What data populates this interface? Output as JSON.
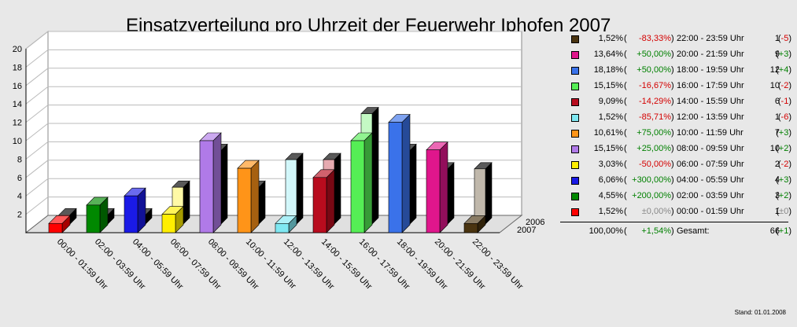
{
  "chart_data": {
    "type": "bar",
    "title": "Einsatzverteilung pro Uhrzeit der Feuerwehr Iphofen 2007",
    "ylim": [
      0,
      20
    ],
    "yticks": [
      2,
      4,
      6,
      8,
      10,
      12,
      14,
      16,
      18,
      20
    ],
    "categories": [
      "00:00 - 01:59 Uhr",
      "02:00 - 03:59 Uhr",
      "04:00 - 05:59 Uhr",
      "06:00 - 07:59 Uhr",
      "08:00 - 09:59 Uhr",
      "10:00 - 11:59 Uhr",
      "12:00 - 13:59 Uhr",
      "14:00 - 15:59 Uhr",
      "16:00 - 17:59 Uhr",
      "18:00 - 19:59 Uhr",
      "20:00 - 21:59 Uhr",
      "22:00 - 23:59 Uhr"
    ],
    "colors": [
      "#ff0000",
      "#008800",
      "#1a1ae6",
      "#ffee00",
      "#b07ae8",
      "#ff9418",
      "#7fe8f2",
      "#b80c1e",
      "#55ee55",
      "#3a72ea",
      "#e0168c",
      "#4a3410"
    ],
    "series": [
      {
        "name": "2007",
        "values": [
          1,
          3,
          4,
          2,
          10,
          7,
          1,
          6,
          10,
          12,
          9,
          1
        ]
      },
      {
        "name": "2006",
        "values": [
          1,
          1,
          1,
          4,
          8,
          4,
          7,
          7,
          12,
          8,
          6,
          6
        ]
      }
    ],
    "grid": true,
    "legend_position": "right"
  },
  "legend": {
    "rows": [
      {
        "color": "#4a3410",
        "pct": "1,52%",
        "open": "(",
        "change": "-83,33%",
        "close": ")",
        "time": "22:00 - 23:59 Uhr",
        "count": "1",
        "pre": "(",
        "diff": "-5",
        "post": ")",
        "sign": "neg"
      },
      {
        "color": "#e0168c",
        "pct": "13,64%",
        "open": "(",
        "change": "+50,00%",
        "close": ")",
        "time": "20:00 - 21:59 Uhr",
        "count": "9",
        "pre": "(",
        "diff": "+3",
        "post": ")",
        "sign": "pos"
      },
      {
        "color": "#3a72ea",
        "pct": "18,18%",
        "open": "(",
        "change": "+50,00%",
        "close": ")",
        "time": "18:00 - 19:59 Uhr",
        "count": "12",
        "pre": "(",
        "diff": "+4",
        "post": ")",
        "sign": "pos"
      },
      {
        "color": "#55ee55",
        "pct": "15,15%",
        "open": "(",
        "change": "-16,67%",
        "close": ")",
        "time": "16:00 - 17:59 Uhr",
        "count": "10",
        "pre": "(",
        "diff": "-2",
        "post": ")",
        "sign": "neg"
      },
      {
        "color": "#b80c1e",
        "pct": "9,09%",
        "open": "(",
        "change": "-14,29%",
        "close": ")",
        "time": "14:00 - 15:59 Uhr",
        "count": "6",
        "pre": "(",
        "diff": "-1",
        "post": ")",
        "sign": "neg"
      },
      {
        "color": "#7fe8f2",
        "pct": "1,52%",
        "open": "(",
        "change": "-85,71%",
        "close": ")",
        "time": "12:00 - 13:59 Uhr",
        "count": "1",
        "pre": "(",
        "diff": "-6",
        "post": ")",
        "sign": "neg"
      },
      {
        "color": "#ff9418",
        "pct": "10,61%",
        "open": "(",
        "change": "+75,00%",
        "close": ")",
        "time": "10:00 - 11:59 Uhr",
        "count": "7",
        "pre": "(",
        "diff": "+3",
        "post": ")",
        "sign": "pos"
      },
      {
        "color": "#b07ae8",
        "pct": "15,15%",
        "open": "(",
        "change": "+25,00%",
        "close": ")",
        "time": "08:00 - 09:59 Uhr",
        "count": "10",
        "pre": "(",
        "diff": "+2",
        "post": ")",
        "sign": "pos"
      },
      {
        "color": "#ffee00",
        "pct": "3,03%",
        "open": "(",
        "change": "-50,00%",
        "close": ")",
        "time": "06:00 - 07:59 Uhr",
        "count": "2",
        "pre": "(",
        "diff": "-2",
        "post": ")",
        "sign": "neg"
      },
      {
        "color": "#1a1ae6",
        "pct": "6,06%",
        "open": "(",
        "change": "+300,00%",
        "close": ")",
        "time": "04:00 - 05:59 Uhr",
        "count": "4",
        "pre": "(",
        "diff": "+3",
        "post": ")",
        "sign": "pos"
      },
      {
        "color": "#008800",
        "pct": "4,55%",
        "open": "(",
        "change": "+200,00%",
        "close": ")",
        "time": "02:00 - 03:59 Uhr",
        "count": "3",
        "pre": "(",
        "diff": "+2",
        "post": ")",
        "sign": "pos"
      },
      {
        "color": "#ff0000",
        "pct": "1,52%",
        "open": "(",
        "change": "±0,00%",
        "close": ")",
        "time": "00:00 - 01:59 Uhr",
        "count": "1",
        "pre": "(",
        "diff": "±0",
        "post": ")",
        "sign": "zero"
      }
    ],
    "total": {
      "pct": "100,00%",
      "open": "(",
      "change": "+1,54%",
      "close": ")",
      "label": "Gesamt:",
      "count": "66",
      "pre": "(",
      "diff": "+1",
      "post": ")",
      "sign": "pos"
    }
  },
  "footer": {
    "stand": "Stand: 01.01.2008"
  }
}
